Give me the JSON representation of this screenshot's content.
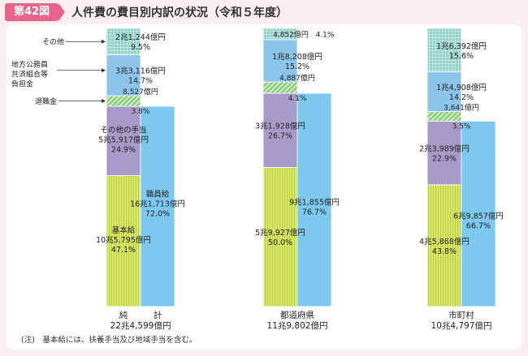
{
  "header": {
    "badge": "第42図",
    "title": "人件費の費目別内訳の状況（令和５年度）"
  },
  "note": "(注)　基本給には、扶養手当及び地域手当を含む。",
  "colors": {
    "background": "#fbeef1",
    "badge": "#e5668a",
    "kihonkyu": "#d7e86a",
    "sonota_teate": "#a99bc9",
    "taishokukin": "#8fcf82",
    "kyosai": "#8cc4ea",
    "sonota": "#8fd3c8",
    "shokuinkyu": "#7cc8ee"
  },
  "chart_data": {
    "type": "stacked-bar",
    "unit": "億円",
    "left_annotations": [
      "その他",
      "地方公務員\n共済組合等\n負担金",
      "退職金"
    ],
    "columns": [
      {
        "name": "純計",
        "name_left": "純",
        "name_right": "計",
        "total": "22兆4,599億円",
        "total_value": 224599,
        "left_segments": [
          {
            "category": "基本給",
            "label": "基本給",
            "amount": "10兆5,795億円",
            "value": 105795,
            "percent": "47.1%"
          },
          {
            "category": "その他の手当",
            "label": "その他の手当",
            "amount": "5兆5,917億円",
            "value": 55917,
            "percent": "24.9%"
          },
          {
            "category": "退職金",
            "label": "",
            "amount": "8,527億円",
            "value": 8527,
            "percent": "3.8%"
          },
          {
            "category": "地方公務員共済組合等負担金",
            "label": "",
            "amount": "3兆3,116億円",
            "value": 33116,
            "percent": "14.7%"
          },
          {
            "category": "その他",
            "label": "",
            "amount": "2兆1,244億円",
            "value": 21244,
            "percent": "9.5%"
          }
        ],
        "right_segments": [
          {
            "category": "職員給",
            "label": "職員給",
            "amount": "16兆1,713億円",
            "value": 161713,
            "percent": "72.0%"
          }
        ]
      },
      {
        "name": "都道府県",
        "total": "11兆9,802億円",
        "total_value": 119802,
        "left_segments": [
          {
            "category": "基本給",
            "label": "",
            "amount": "5兆9,927億円",
            "value": 59927,
            "percent": "50.0%"
          },
          {
            "category": "その他の手当",
            "label": "",
            "amount": "3兆1,928億円",
            "value": 31928,
            "percent": "26.7%"
          },
          {
            "category": "退職金",
            "label": "",
            "amount": "4,887億円",
            "value": 4887,
            "percent": "4.1%"
          },
          {
            "category": "地方公務員共済組合等負担金",
            "label": "",
            "amount": "1兆8,208億円",
            "value": 18208,
            "percent": "15.2%"
          },
          {
            "category": "その他",
            "label": "",
            "amount": "4,852億円",
            "value": 4852,
            "percent": "4.1%"
          }
        ],
        "right_segments": [
          {
            "category": "職員給",
            "label": "",
            "amount": "9兆1,855億円",
            "value": 91855,
            "percent": "76.7%"
          }
        ]
      },
      {
        "name": "市町村",
        "total": "10兆4,797億円",
        "total_value": 104797,
        "left_segments": [
          {
            "category": "基本給",
            "label": "",
            "amount": "4兆5,868億円",
            "value": 45868,
            "percent": "43.8%"
          },
          {
            "category": "その他の手当",
            "label": "",
            "amount": "2兆3,989億円",
            "value": 23989,
            "percent": "22.9%"
          },
          {
            "category": "退職金",
            "label": "",
            "amount": "3,641億円",
            "value": 3641,
            "percent": "3.5%"
          },
          {
            "category": "地方公務員共済組合等負担金",
            "label": "",
            "amount": "1兆4,908億円",
            "value": 14908,
            "percent": "14.2%"
          },
          {
            "category": "その他",
            "label": "",
            "amount": "1兆6,392億円",
            "value": 16392,
            "percent": "15.6%"
          }
        ],
        "right_segments": [
          {
            "category": "職員給",
            "label": "",
            "amount": "6兆9,857億円",
            "value": 69857,
            "percent": "66.7%"
          }
        ]
      }
    ]
  }
}
